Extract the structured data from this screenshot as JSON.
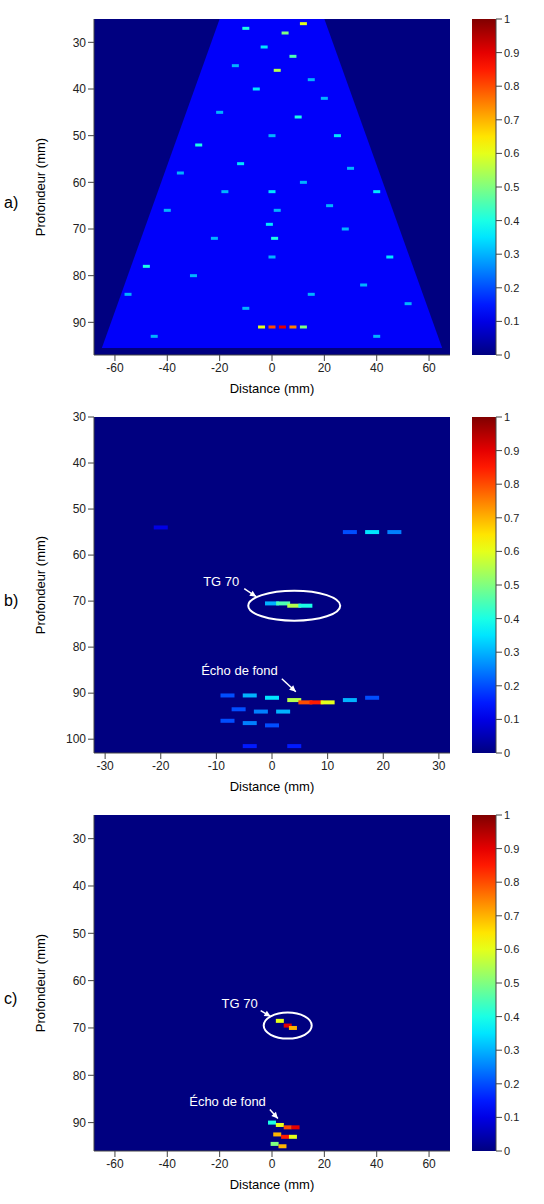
{
  "chart_data": [
    {
      "type": "heatmap",
      "panel": "a)",
      "xlabel": "Distance (mm)",
      "ylabel": "Profondeur (mm)",
      "xlim": [
        -68,
        68
      ],
      "xticks": [
        -60,
        -40,
        -20,
        0,
        20,
        40,
        60
      ],
      "ylim": [
        25,
        97
      ],
      "yticks": [
        30,
        40,
        50,
        60,
        70,
        80,
        90
      ],
      "sector": {
        "x": [
          -65,
          -20,
          20,
          65
        ],
        "depth_top": [
          95.5,
          25,
          25,
          95.5
        ],
        "depth_bottom": [
          95.5,
          95.5,
          95.5,
          95.5
        ],
        "value": 0.12
      },
      "cells": [
        [
          -10,
          27,
          0.4
        ],
        [
          5,
          28,
          0.5
        ],
        [
          12,
          26,
          0.6
        ],
        [
          -3,
          31,
          0.35
        ],
        [
          8,
          33,
          0.45
        ],
        [
          -14,
          35,
          0.3
        ],
        [
          2,
          36,
          0.55
        ],
        [
          15,
          38,
          0.3
        ],
        [
          -6,
          40,
          0.35
        ],
        [
          20,
          42,
          0.3
        ],
        [
          -20,
          45,
          0.3
        ],
        [
          10,
          46,
          0.4
        ],
        [
          -28,
          52,
          0.4
        ],
        [
          25,
          50,
          0.35
        ],
        [
          0,
          50,
          0.3
        ],
        [
          -35,
          58,
          0.3
        ],
        [
          30,
          57,
          0.3
        ],
        [
          -12,
          56,
          0.35
        ],
        [
          12,
          60,
          0.3
        ],
        [
          40,
          62,
          0.35
        ],
        [
          -40,
          66,
          0.3
        ],
        [
          0,
          62,
          0.35
        ],
        [
          2,
          66,
          0.3
        ],
        [
          -1,
          69,
          0.35
        ],
        [
          1,
          72,
          0.4
        ],
        [
          -22,
          72,
          0.3
        ],
        [
          28,
          70,
          0.3
        ],
        [
          45,
          76,
          0.35
        ],
        [
          -48,
          78,
          0.4
        ],
        [
          0,
          76,
          0.3
        ],
        [
          -30,
          80,
          0.3
        ],
        [
          35,
          82,
          0.3
        ],
        [
          -55,
          84,
          0.3
        ],
        [
          15,
          84,
          0.3
        ],
        [
          52,
          86,
          0.3
        ],
        [
          -10,
          87,
          0.3
        ],
        [
          -4,
          91,
          0.6
        ],
        [
          0,
          91,
          0.8
        ],
        [
          4,
          91,
          0.9
        ],
        [
          8,
          91,
          0.75
        ],
        [
          12,
          91,
          0.5
        ],
        [
          -45,
          93,
          0.3
        ],
        [
          40,
          93,
          0.3
        ],
        [
          -18,
          62,
          0.3
        ],
        [
          22,
          65,
          0.3
        ]
      ],
      "annotations": [],
      "colorbar": {
        "range": [
          0,
          1
        ],
        "ticks": [
          0,
          0.1,
          0.2,
          0.3,
          0.4,
          0.5,
          0.6,
          0.7,
          0.8,
          0.9,
          1
        ]
      }
    },
    {
      "type": "heatmap",
      "panel": "b)",
      "xlabel": "Distance (mm)",
      "ylabel": "Profondeur (mm)",
      "xlim": [
        -32,
        32
      ],
      "xticks": [
        -30,
        -20,
        -10,
        0,
        10,
        20,
        30
      ],
      "ylim": [
        30,
        103
      ],
      "yticks": [
        30,
        40,
        50,
        60,
        70,
        80,
        90,
        100
      ],
      "cells": [
        [
          14,
          55,
          0.2
        ],
        [
          18,
          55,
          0.35
        ],
        [
          22,
          55,
          0.25
        ],
        [
          -20,
          54,
          0.1
        ],
        [
          0,
          70.5,
          0.3
        ],
        [
          2,
          70.5,
          0.45
        ],
        [
          4,
          71,
          0.55
        ],
        [
          6,
          71,
          0.4
        ],
        [
          -8,
          90.5,
          0.2
        ],
        [
          -4,
          90.5,
          0.3
        ],
        [
          0,
          91,
          0.35
        ],
        [
          4,
          91.5,
          0.55
        ],
        [
          6,
          92,
          0.8
        ],
        [
          8,
          92,
          0.85
        ],
        [
          10,
          92,
          0.6
        ],
        [
          14,
          91.5,
          0.3
        ],
        [
          18,
          91,
          0.2
        ],
        [
          -6,
          93.5,
          0.2
        ],
        [
          -2,
          94,
          0.25
        ],
        [
          2,
          94,
          0.3
        ],
        [
          -8,
          96,
          0.2
        ],
        [
          -4,
          96.5,
          0.25
        ],
        [
          0,
          97,
          0.2
        ],
        [
          -4,
          101.5,
          0.15
        ],
        [
          4,
          101.5,
          0.15
        ]
      ],
      "annotations": [
        {
          "text": "TG 70",
          "x": 4,
          "y": 71,
          "circled": true
        },
        {
          "text": "Écho de fond",
          "x": 5,
          "y": 91,
          "circled": false
        }
      ],
      "colorbar": {
        "range": [
          0,
          1
        ],
        "ticks": [
          0,
          0.1,
          0.2,
          0.3,
          0.4,
          0.5,
          0.6,
          0.7,
          0.8,
          0.9,
          1
        ]
      }
    },
    {
      "type": "heatmap",
      "panel": "c)",
      "xlabel": "Distance (mm)",
      "ylabel": "Profondeur (mm)",
      "xlim": [
        -68,
        68
      ],
      "xticks": [
        -60,
        -40,
        -20,
        0,
        20,
        40,
        60
      ],
      "ylim": [
        25,
        96
      ],
      "yticks": [
        30,
        40,
        50,
        60,
        70,
        80,
        90
      ],
      "cells": [
        [
          3,
          68.5,
          0.6
        ],
        [
          6,
          69.5,
          0.9
        ],
        [
          8,
          70,
          0.7
        ],
        [
          0,
          90,
          0.4
        ],
        [
          3,
          90.5,
          0.6
        ],
        [
          6,
          91,
          0.8
        ],
        [
          9,
          91,
          0.9
        ],
        [
          2,
          92.5,
          0.7
        ],
        [
          5,
          93,
          0.85
        ],
        [
          8,
          93,
          0.6
        ],
        [
          1,
          94.5,
          0.5
        ],
        [
          4,
          95,
          0.7
        ]
      ],
      "annotations": [
        {
          "text": "TG 70",
          "x": 6,
          "y": 69.5,
          "circled": true
        },
        {
          "text": "Écho de fond",
          "x": 3,
          "y": 90,
          "circled": false
        }
      ],
      "colorbar": {
        "range": [
          0,
          1
        ],
        "ticks": [
          0,
          0.1,
          0.2,
          0.3,
          0.4,
          0.5,
          0.6,
          0.7,
          0.8,
          0.9,
          1
        ]
      }
    }
  ]
}
